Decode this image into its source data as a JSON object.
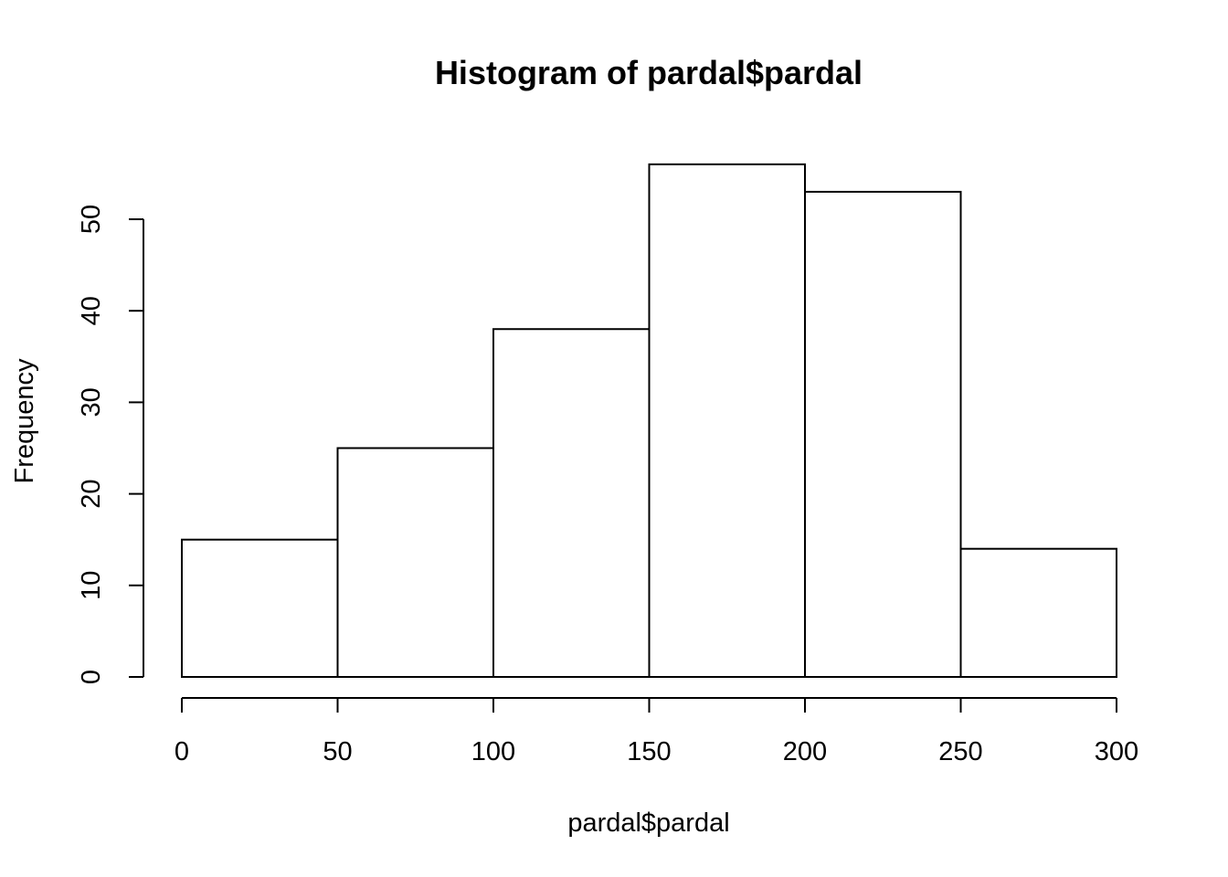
{
  "chart_data": {
    "type": "bar",
    "title": "Histogram of pardal$pardal",
    "xlabel": "pardal$pardal",
    "ylabel": "Frequency",
    "bins": [
      {
        "from": 0,
        "to": 50,
        "count": 15
      },
      {
        "from": 50,
        "to": 100,
        "count": 25
      },
      {
        "from": 100,
        "to": 150,
        "count": 38
      },
      {
        "from": 150,
        "to": 200,
        "count": 56
      },
      {
        "from": 200,
        "to": 250,
        "count": 53
      },
      {
        "from": 250,
        "to": 300,
        "count": 14
      }
    ],
    "xlim": [
      0,
      300
    ],
    "ylim": [
      0,
      56
    ],
    "x_ticks": [
      0,
      50,
      100,
      150,
      200,
      250,
      300
    ],
    "x_tick_labels": [
      "0",
      "50",
      "100",
      "150",
      "200",
      "250",
      "300"
    ],
    "y_ticks": [
      0,
      10,
      20,
      30,
      40,
      50
    ],
    "y_tick_labels": [
      "0",
      "10",
      "20",
      "30",
      "40",
      "50"
    ],
    "grid": false,
    "legend": "none",
    "colors": {
      "bar_fill": "#ffffff",
      "bar_stroke": "#000000",
      "background": "#ffffff"
    }
  }
}
